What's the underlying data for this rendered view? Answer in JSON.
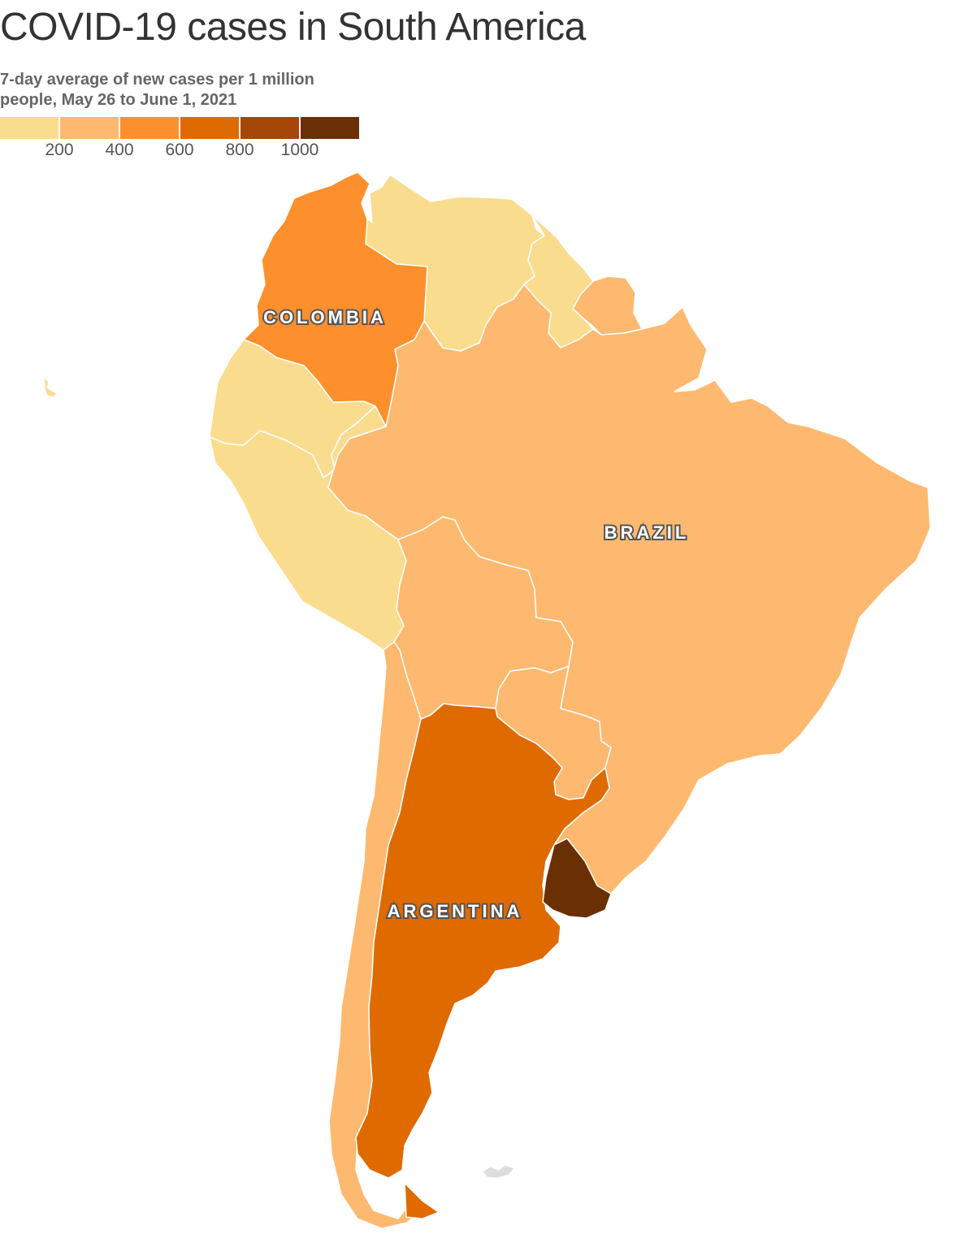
{
  "title": "COVID-19 cases in South America",
  "subtitle": "7-day average of new cases per 1 million people, May 26 to June 1, 2021",
  "legend": {
    "colors": [
      "#fadc8f",
      "#fdb96f",
      "#fd8f2c",
      "#df6a00",
      "#a44707",
      "#6a2f02"
    ],
    "ticks": [
      "200",
      "400",
      "600",
      "800",
      "1000"
    ]
  },
  "map_labels": {
    "colombia": "COLOMBIA",
    "brazil": "BRAZIL",
    "argentina": "ARGENTINA"
  },
  "chart_data": {
    "type": "choropleth",
    "title": "COVID-19 cases in South America",
    "subtitle": "7-day average of new cases per 1 million people, May 26 to June 1, 2021",
    "bins": [
      {
        "range": [
          0,
          200
        ],
        "color": "#fadc8f"
      },
      {
        "range": [
          200,
          400
        ],
        "color": "#fdb96f"
      },
      {
        "range": [
          400,
          600
        ],
        "color": "#fd8f2c"
      },
      {
        "range": [
          600,
          800
        ],
        "color": "#df6a00"
      },
      {
        "range": [
          800,
          1000
        ],
        "color": "#a44707"
      },
      {
        "range": [
          1000,
          null
        ],
        "color": "#6a2f02"
      }
    ],
    "countries": [
      {
        "name": "Venezuela",
        "bin": "0-200"
      },
      {
        "name": "Guyana",
        "bin": "0-200"
      },
      {
        "name": "Ecuador",
        "bin": "0-200"
      },
      {
        "name": "Peru",
        "bin": "0-200"
      },
      {
        "name": "Suriname",
        "bin": "200-400"
      },
      {
        "name": "Brazil",
        "bin": "200-400"
      },
      {
        "name": "Bolivia",
        "bin": "200-400"
      },
      {
        "name": "Paraguay",
        "bin": "200-400"
      },
      {
        "name": "Chile",
        "bin": "200-400"
      },
      {
        "name": "Colombia",
        "bin": "400-600"
      },
      {
        "name": "Argentina",
        "bin": "600-800"
      },
      {
        "name": "Uruguay",
        "bin": "1000+"
      }
    ]
  }
}
